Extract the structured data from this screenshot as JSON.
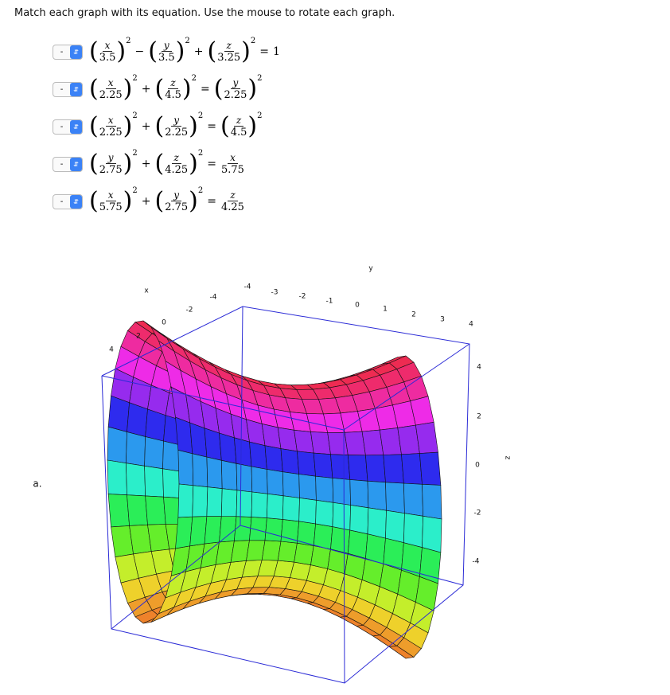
{
  "instruction": "Match each graph with its equation. Use the mouse to rotate each graph.",
  "equations": [
    {
      "choice": "-",
      "tokens": [
        {
          "num": "x",
          "den": "3.5",
          "pow": "2"
        },
        {
          "op": "−"
        },
        {
          "num": "y",
          "den": "3.5",
          "pow": "2"
        },
        {
          "op": "+"
        },
        {
          "num": "z",
          "den": "3.25",
          "pow": "2"
        },
        {
          "op": "="
        },
        {
          "const": "1"
        }
      ]
    },
    {
      "choice": "-",
      "tokens": [
        {
          "num": "x",
          "den": "2.25",
          "pow": "2"
        },
        {
          "op": "+"
        },
        {
          "num": "z",
          "den": "4.5",
          "pow": "2"
        },
        {
          "op": "="
        },
        {
          "num": "y",
          "den": "2.25",
          "pow": "2"
        }
      ]
    },
    {
      "choice": "-",
      "tokens": [
        {
          "num": "x",
          "den": "2.25",
          "pow": "2"
        },
        {
          "op": "+"
        },
        {
          "num": "y",
          "den": "2.25",
          "pow": "2"
        },
        {
          "op": "="
        },
        {
          "num": "z",
          "den": "4.5",
          "pow": "2"
        }
      ]
    },
    {
      "choice": "-",
      "tokens": [
        {
          "num": "y",
          "den": "2.75",
          "pow": "2"
        },
        {
          "op": "+"
        },
        {
          "num": "z",
          "den": "4.25",
          "pow": "2"
        },
        {
          "op": "="
        },
        {
          "num": "x",
          "den": "5.75"
        }
      ]
    },
    {
      "choice": "-",
      "tokens": [
        {
          "num": "x",
          "den": "5.75",
          "pow": "2"
        },
        {
          "op": "+"
        },
        {
          "num": "y",
          "den": "2.75",
          "pow": "2"
        },
        {
          "op": "="
        },
        {
          "num": "z",
          "den": "4.25"
        }
      ]
    }
  ],
  "graph": {
    "label": "a.",
    "x_axis": {
      "label": "x",
      "ticks": [
        4,
        2,
        0,
        -2,
        -4
      ]
    },
    "y_axis": {
      "label": "y",
      "ticks": [
        -4,
        -3,
        -2,
        -1,
        0,
        1,
        2,
        3,
        4
      ]
    },
    "z_axis": {
      "label": "z",
      "ticks": [
        4,
        2,
        0,
        -2,
        -4
      ]
    }
  }
}
